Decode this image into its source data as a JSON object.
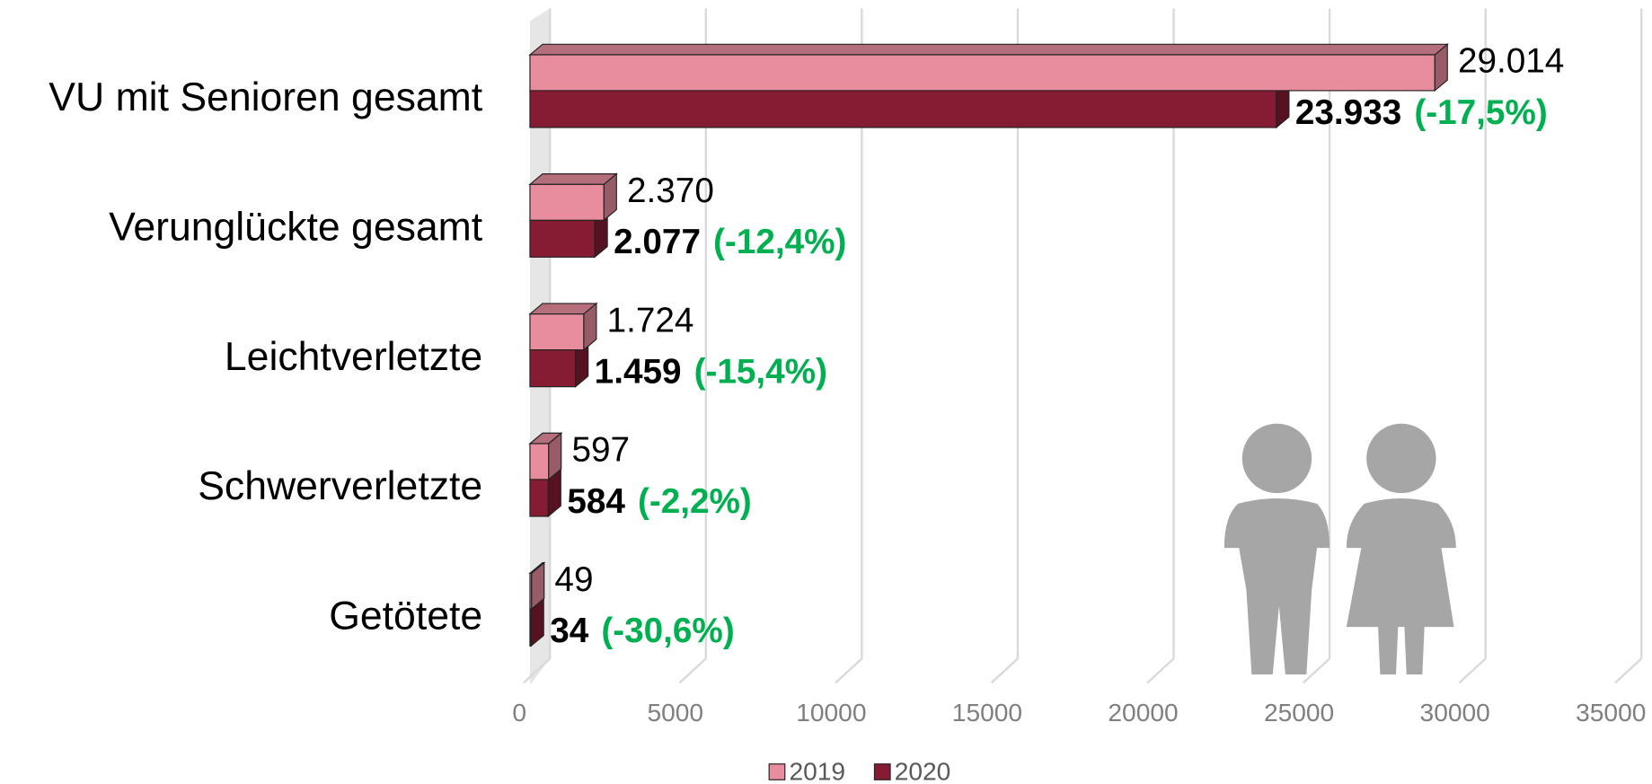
{
  "chart_data": {
    "type": "bar3d_horizontal",
    "categories": [
      "VU mit Senioren gesamt",
      "Verunglückte gesamt",
      "Leichtverletzte",
      "Schwerverletzte",
      "Getötete"
    ],
    "series": [
      {
        "name": "2019",
        "color": "#e88d9e",
        "values": [
          29014,
          2370,
          1724,
          597,
          49
        ],
        "value_labels": [
          "29.014",
          "2.370",
          "1.724",
          "597",
          "49"
        ]
      },
      {
        "name": "2020",
        "color": "#861c33",
        "values": [
          23933,
          2077,
          1459,
          584,
          34
        ],
        "value_labels": [
          "23.933",
          "2.077",
          "1.459",
          "584",
          "34"
        ],
        "change_labels": [
          "(-17,5%)",
          "(-12,4%)",
          "(-15,4%)",
          "(-2,2%)",
          "(-30,6%)"
        ]
      }
    ],
    "xlim": [
      0,
      35000
    ],
    "xticks": [
      0,
      5000,
      10000,
      15000,
      20000,
      25000,
      30000,
      35000
    ],
    "grid": true,
    "legend": "bottom"
  }
}
